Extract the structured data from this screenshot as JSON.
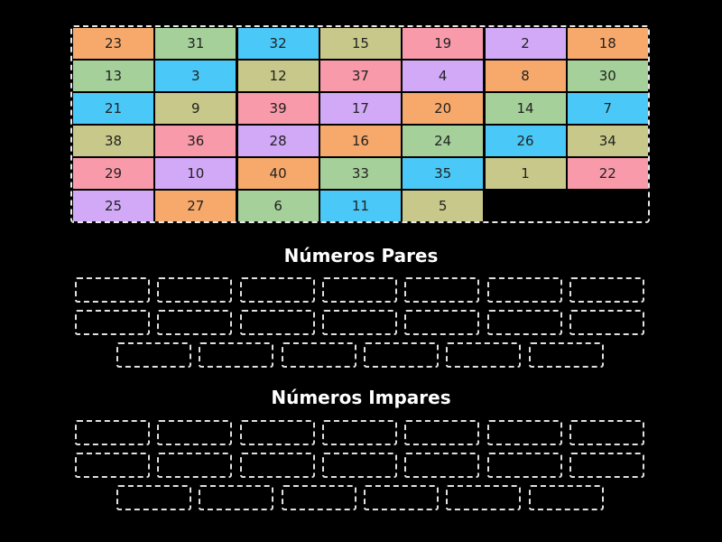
{
  "colors": {
    "orange": "#f7a96b",
    "green": "#a5d09a",
    "blue": "#4ac8f7",
    "olive": "#c8c88a",
    "pink": "#f89aaa",
    "purple": "#d1a9f7"
  },
  "tiles": [
    {
      "label": "23",
      "color": "orange"
    },
    {
      "label": "31",
      "color": "green"
    },
    {
      "label": "32",
      "color": "blue"
    },
    {
      "label": "15",
      "color": "olive"
    },
    {
      "label": "19",
      "color": "pink"
    },
    {
      "label": "2",
      "color": "purple"
    },
    {
      "label": "18",
      "color": "orange"
    },
    {
      "label": "13",
      "color": "green"
    },
    {
      "label": "3",
      "color": "blue"
    },
    {
      "label": "12",
      "color": "olive"
    },
    {
      "label": "37",
      "color": "pink"
    },
    {
      "label": "4",
      "color": "purple"
    },
    {
      "label": "8",
      "color": "orange"
    },
    {
      "label": "30",
      "color": "green"
    },
    {
      "label": "21",
      "color": "blue"
    },
    {
      "label": "9",
      "color": "olive"
    },
    {
      "label": "39",
      "color": "pink"
    },
    {
      "label": "17",
      "color": "purple"
    },
    {
      "label": "20",
      "color": "orange"
    },
    {
      "label": "14",
      "color": "green"
    },
    {
      "label": "7",
      "color": "blue"
    },
    {
      "label": "38",
      "color": "olive"
    },
    {
      "label": "36",
      "color": "pink"
    },
    {
      "label": "28",
      "color": "purple"
    },
    {
      "label": "16",
      "color": "orange"
    },
    {
      "label": "24",
      "color": "green"
    },
    {
      "label": "26",
      "color": "blue"
    },
    {
      "label": "34",
      "color": "olive"
    },
    {
      "label": "29",
      "color": "pink"
    },
    {
      "label": "10",
      "color": "purple"
    },
    {
      "label": "40",
      "color": "orange"
    },
    {
      "label": "33",
      "color": "green"
    },
    {
      "label": "35",
      "color": "blue"
    },
    {
      "label": "1",
      "color": "olive"
    },
    {
      "label": "22",
      "color": "pink"
    },
    {
      "label": "25",
      "color": "purple"
    },
    {
      "label": "27",
      "color": "orange"
    },
    {
      "label": "6",
      "color": "green"
    },
    {
      "label": "11",
      "color": "blue"
    },
    {
      "label": "5",
      "color": "olive"
    }
  ],
  "groups": [
    {
      "title": "Números Pares",
      "slots": 20
    },
    {
      "title": "Números Impares",
      "slots": 20
    }
  ]
}
